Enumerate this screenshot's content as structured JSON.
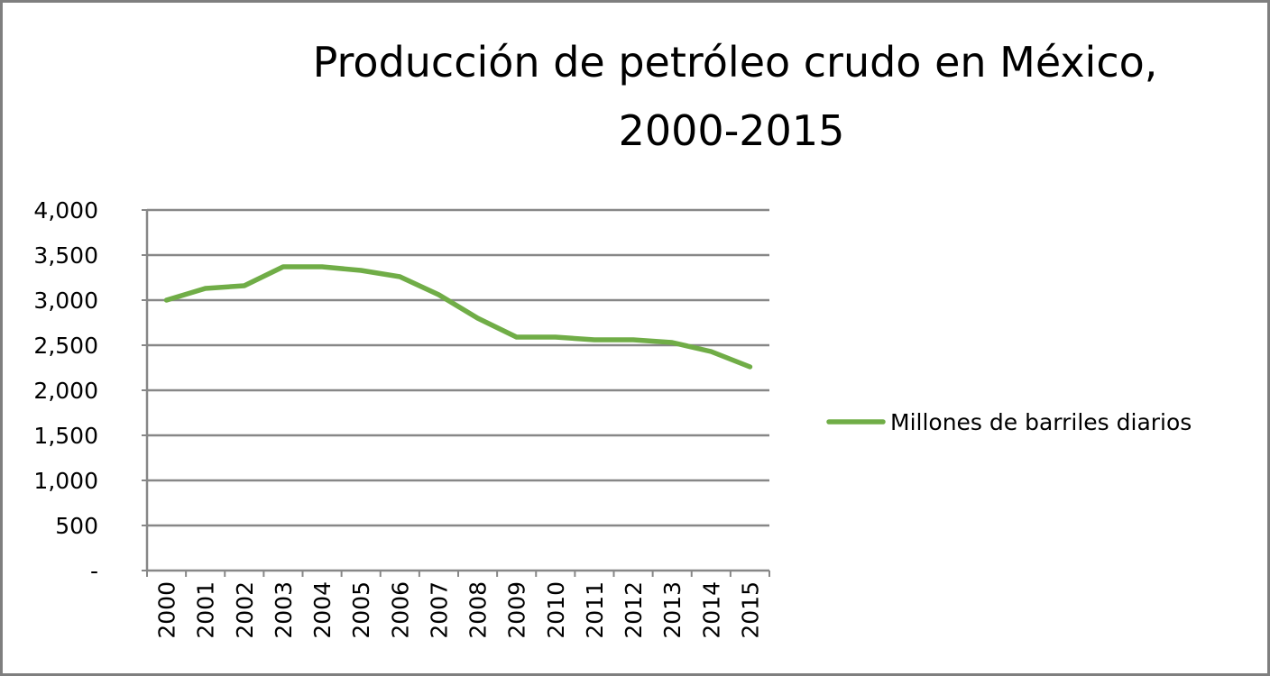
{
  "chart_data": {
    "type": "line",
    "title_lines": [
      "Producción de petróleo crudo en México,",
      "2000-2015"
    ],
    "xlabel": "",
    "ylabel": "",
    "categories": [
      "2000",
      "2001",
      "2002",
      "2003",
      "2004",
      "2005",
      "2006",
      "2007",
      "2008",
      "2009",
      "2010",
      "2011",
      "2012",
      "2013",
      "2014",
      "2015"
    ],
    "series": [
      {
        "name": "Millones de barriles diarios",
        "color": "#70ad47",
        "values": [
          3000,
          3130,
          3160,
          3370,
          3370,
          3330,
          3260,
          3060,
          2800,
          2590,
          2590,
          2560,
          2560,
          2530,
          2430,
          2260
        ]
      }
    ],
    "ylim": [
      0,
      4000
    ],
    "yticks": [
      0,
      500,
      1000,
      1500,
      2000,
      2500,
      3000,
      3500,
      4000
    ],
    "ytick_labels": [
      "-",
      "500",
      "1,000",
      "1,500",
      "2,000",
      "2,500",
      "3,000",
      "3,500",
      "4,000"
    ],
    "grid": true,
    "legend_position": "right"
  }
}
